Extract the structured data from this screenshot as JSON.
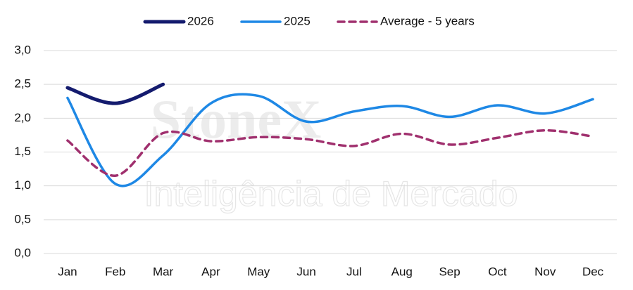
{
  "chart_data": {
    "type": "line",
    "categories": [
      "Jan",
      "Feb",
      "Mar",
      "Apr",
      "May",
      "Jun",
      "Jul",
      "Aug",
      "Sep",
      "Oct",
      "Nov",
      "Dec"
    ],
    "series": [
      {
        "name": "2026",
        "color": "#141b6e",
        "dash": false,
        "width": 5,
        "values": [
          2.45,
          2.22,
          2.5,
          null,
          null,
          null,
          null,
          null,
          null,
          null,
          null,
          null
        ]
      },
      {
        "name": "2025",
        "color": "#1e88e5",
        "dash": false,
        "width": 3.5,
        "values": [
          2.3,
          1.03,
          1.45,
          2.22,
          2.33,
          1.95,
          2.1,
          2.18,
          2.02,
          2.19,
          2.07,
          2.28
        ]
      },
      {
        "name": "Average - 5 years",
        "color": "#a0306e",
        "dash": true,
        "width": 3.5,
        "values": [
          1.67,
          1.15,
          1.78,
          1.66,
          1.72,
          1.69,
          1.59,
          1.77,
          1.61,
          1.71,
          1.82,
          1.73
        ]
      }
    ],
    "ylim": [
      0,
      3
    ],
    "yticks": [
      {
        "value": 0,
        "label": "0,0"
      },
      {
        "value": 0.5,
        "label": "0,5"
      },
      {
        "value": 1,
        "label": "1,0"
      },
      {
        "value": 1.5,
        "label": "1,5"
      },
      {
        "value": 2,
        "label": "2,0"
      },
      {
        "value": 2.5,
        "label": "2,5"
      },
      {
        "value": 3,
        "label": "3,0"
      }
    ],
    "grid": true,
    "legend": "top",
    "watermark": [
      "StoneX",
      "Inteligência de Mercado"
    ]
  }
}
